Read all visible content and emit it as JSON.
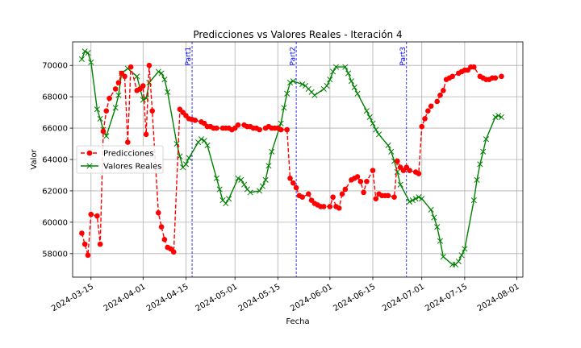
{
  "chart_data": {
    "type": "line",
    "title": "Predicciones vs Valores Reales - Iteración 4",
    "xlabel": "Fecha",
    "ylabel": "Valor",
    "xlim": [
      "2024-03-09",
      "2024-08-03"
    ],
    "ylim": [
      56500,
      71500
    ],
    "grid": true,
    "legend_position": "center-left",
    "x_ticks": [
      {
        "date": "2024-03-15",
        "label": "2024-03-15"
      },
      {
        "date": "2024-04-01",
        "label": "2024-04-01"
      },
      {
        "date": "2024-04-15",
        "label": "2024-04-15"
      },
      {
        "date": "2024-05-01",
        "label": "2024-05-01"
      },
      {
        "date": "2024-05-15",
        "label": "2024-05-15"
      },
      {
        "date": "2024-06-01",
        "label": "2024-06-01"
      },
      {
        "date": "2024-06-15",
        "label": "2024-06-15"
      },
      {
        "date": "2024-07-01",
        "label": "2024-07-01"
      },
      {
        "date": "2024-07-15",
        "label": "2024-07-15"
      },
      {
        "date": "2024-08-01",
        "label": "2024-08-01"
      }
    ],
    "y_ticks": [
      58000,
      60000,
      62000,
      64000,
      66000,
      68000,
      70000
    ],
    "parts": [
      {
        "date": "2024-04-17",
        "label": "Part1"
      },
      {
        "date": "2024-05-21",
        "label": "Part2"
      },
      {
        "date": "2024-06-26",
        "label": "Part3"
      }
    ],
    "series": [
      {
        "name": "Predicciones",
        "color": "#ff0000",
        "style": "dashed",
        "marker": "circle",
        "x": [
          "2024-03-12",
          "2024-03-13",
          "2024-03-14",
          "2024-03-15",
          "2024-03-17",
          "2024-03-18",
          "2024-03-19",
          "2024-03-20",
          "2024-03-21",
          "2024-03-23",
          "2024-03-24",
          "2024-03-25",
          "2024-03-26",
          "2024-03-27",
          "2024-03-28",
          "2024-03-30",
          "2024-03-31",
          "2024-04-01",
          "2024-04-02",
          "2024-04-03",
          "2024-04-04",
          "2024-04-06",
          "2024-04-07",
          "2024-04-08",
          "2024-04-09",
          "2024-04-10",
          "2024-04-11",
          "2024-04-13",
          "2024-04-14",
          "2024-04-15",
          "2024-04-16",
          "2024-04-17",
          "2024-04-18",
          "2024-04-20",
          "2024-04-21",
          "2024-04-22",
          "2024-04-23",
          "2024-04-24",
          "2024-04-25",
          "2024-04-27",
          "2024-04-28",
          "2024-04-29",
          "2024-04-30",
          "2024-05-01",
          "2024-05-02",
          "2024-05-04",
          "2024-05-05",
          "2024-05-06",
          "2024-05-07",
          "2024-05-08",
          "2024-05-09",
          "2024-05-11",
          "2024-05-12",
          "2024-05-13",
          "2024-05-14",
          "2024-05-15",
          "2024-05-16",
          "2024-05-18",
          "2024-05-19",
          "2024-05-20",
          "2024-05-21",
          "2024-05-22",
          "2024-05-23",
          "2024-05-25",
          "2024-05-26",
          "2024-05-27",
          "2024-05-28",
          "2024-05-29",
          "2024-05-30",
          "2024-06-01",
          "2024-06-02",
          "2024-06-03",
          "2024-06-04",
          "2024-06-05",
          "2024-06-06",
          "2024-06-08",
          "2024-06-09",
          "2024-06-10",
          "2024-06-11",
          "2024-06-12",
          "2024-06-13",
          "2024-06-15",
          "2024-06-16",
          "2024-06-17",
          "2024-06-18",
          "2024-06-19",
          "2024-06-20",
          "2024-06-22",
          "2024-06-23",
          "2024-06-24",
          "2024-06-25",
          "2024-06-26",
          "2024-06-27",
          "2024-06-29",
          "2024-06-30",
          "2024-07-01",
          "2024-07-02",
          "2024-07-03",
          "2024-07-04",
          "2024-07-06",
          "2024-07-07",
          "2024-07-08",
          "2024-07-09",
          "2024-07-10",
          "2024-07-11",
          "2024-07-13",
          "2024-07-14",
          "2024-07-15",
          "2024-07-16",
          "2024-07-17",
          "2024-07-18",
          "2024-07-20",
          "2024-07-21",
          "2024-07-22",
          "2024-07-23",
          "2024-07-24",
          "2024-07-25",
          "2024-07-27"
        ],
        "y": [
          59300,
          58600,
          57900,
          60500,
          60400,
          58600,
          65800,
          67100,
          67900,
          68500,
          68900,
          69500,
          69300,
          65100,
          69900,
          68400,
          68500,
          68700,
          65600,
          70000,
          67100,
          60600,
          59700,
          58900,
          58400,
          58300,
          58100,
          67200,
          67000,
          66800,
          66600,
          66550,
          66500,
          66400,
          66300,
          66100,
          66100,
          66000,
          66000,
          66000,
          66000,
          66000,
          65900,
          66000,
          66200,
          66200,
          66100,
          66100,
          66000,
          66000,
          65900,
          66000,
          66100,
          66000,
          66000,
          66000,
          65900,
          65900,
          62800,
          62500,
          62200,
          61700,
          61600,
          61800,
          61400,
          61200,
          61100,
          61000,
          61000,
          61000,
          61600,
          61000,
          60900,
          61800,
          62100,
          62700,
          62800,
          62900,
          62600,
          61900,
          62600,
          63300,
          61500,
          61800,
          61700,
          61700,
          61700,
          61600,
          63900,
          63500,
          63300,
          63500,
          63300,
          63200,
          63100,
          66100,
          66600,
          67100,
          67400,
          67700,
          68100,
          68400,
          69100,
          69200,
          69300,
          69500,
          69600,
          69700,
          69700,
          69900,
          69900,
          69300,
          69200,
          69100,
          69100,
          69200,
          69200,
          69300
        ]
      },
      {
        "name": "Valores Reales",
        "color": "#008000",
        "style": "solid",
        "marker": "x",
        "x": [
          "2024-03-12",
          "2024-03-13",
          "2024-03-14",
          "2024-03-15",
          "2024-03-17",
          "2024-03-18",
          "2024-03-19",
          "2024-03-20",
          "2024-03-23",
          "2024-03-24",
          "2024-03-25",
          "2024-03-27",
          "2024-03-30",
          "2024-04-01",
          "2024-04-02",
          "2024-04-03",
          "2024-04-06",
          "2024-04-07",
          "2024-04-08",
          "2024-04-09",
          "2024-04-12",
          "2024-04-13",
          "2024-04-14",
          "2024-04-15",
          "2024-04-16",
          "2024-04-19",
          "2024-04-20",
          "2024-04-21",
          "2024-04-22",
          "2024-04-25",
          "2024-04-26",
          "2024-04-27",
          "2024-04-28",
          "2024-04-29",
          "2024-05-02",
          "2024-05-03",
          "2024-05-04",
          "2024-05-05",
          "2024-05-06",
          "2024-05-09",
          "2024-05-10",
          "2024-05-11",
          "2024-05-12",
          "2024-05-13",
          "2024-05-16",
          "2024-05-17",
          "2024-05-18",
          "2024-05-19",
          "2024-05-20",
          "2024-05-23",
          "2024-05-24",
          "2024-05-25",
          "2024-05-26",
          "2024-05-27",
          "2024-05-30",
          "2024-05-31",
          "2024-06-01",
          "2024-06-02",
          "2024-06-03",
          "2024-06-06",
          "2024-06-07",
          "2024-06-08",
          "2024-06-09",
          "2024-06-10",
          "2024-06-13",
          "2024-06-14",
          "2024-06-15",
          "2024-06-16",
          "2024-06-17",
          "2024-06-20",
          "2024-06-21",
          "2024-06-22",
          "2024-06-23",
          "2024-06-24",
          "2024-06-27",
          "2024-06-28",
          "2024-06-29",
          "2024-06-30",
          "2024-07-01",
          "2024-07-04",
          "2024-07-05",
          "2024-07-06",
          "2024-07-07",
          "2024-07-08",
          "2024-07-11",
          "2024-07-12",
          "2024-07-13",
          "2024-07-14",
          "2024-07-15",
          "2024-07-18",
          "2024-07-19",
          "2024-07-20",
          "2024-07-21",
          "2024-07-22",
          "2024-07-25",
          "2024-07-26",
          "2024-07-27"
        ],
        "y": [
          70400,
          70900,
          70800,
          70200,
          67200,
          66600,
          65900,
          65500,
          67300,
          68100,
          69500,
          69800,
          69300,
          67800,
          67900,
          68900,
          69600,
          69500,
          69100,
          68300,
          65000,
          64200,
          63500,
          63700,
          64100,
          65100,
          65300,
          65200,
          64900,
          62800,
          62100,
          61400,
          61200,
          61500,
          62800,
          62700,
          62400,
          62100,
          61900,
          62000,
          62300,
          62700,
          63600,
          64500,
          66300,
          67300,
          68200,
          68900,
          69000,
          68800,
          68700,
          68500,
          68300,
          68100,
          68500,
          68700,
          69100,
          69600,
          69900,
          69900,
          69500,
          69000,
          68600,
          68200,
          67100,
          66700,
          66300,
          65900,
          65600,
          64900,
          64500,
          63900,
          63200,
          62400,
          61300,
          61400,
          61500,
          61600,
          61500,
          60800,
          60300,
          59700,
          58800,
          57800,
          57300,
          57300,
          57500,
          57900,
          58300,
          61400,
          62700,
          63700,
          64500,
          65300,
          66700,
          66800,
          66700
        ]
      }
    ]
  }
}
